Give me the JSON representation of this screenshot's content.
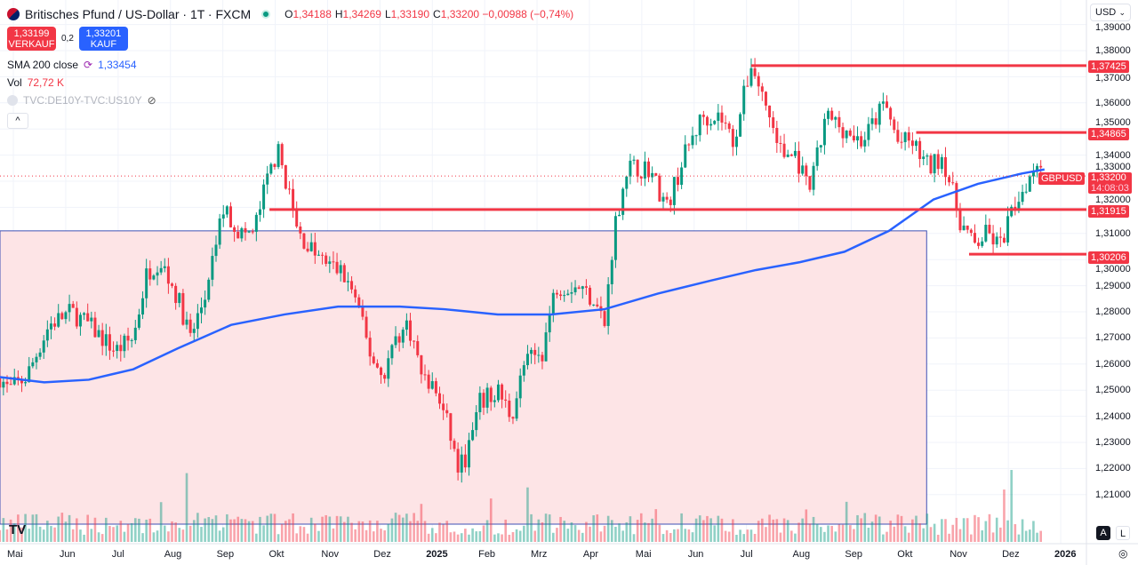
{
  "header": {
    "title": "Britisches Pfund / US-Dollar · 1T · FXCM",
    "o_label": "O",
    "o": "1,34188",
    "h_label": "H",
    "h": "1,34269",
    "l_label": "L",
    "l": "1,33190",
    "c_label": "C",
    "c": "1,33200",
    "change": "−0,00988 (−0,74%)"
  },
  "trade": {
    "sell_price": "1,33199",
    "sell_label": "VERKAUF",
    "spread": "0,2",
    "buy_price": "1,33201",
    "buy_label": "KAUF"
  },
  "indicators": {
    "sma_label": "SMA 200 close",
    "sma_value": "1,33454",
    "vol_label": "Vol",
    "vol_value": "72,72 K",
    "compare_label": "TVC:DE10Y-TVC:US10Y"
  },
  "currency": "USD",
  "price_axis": [
    "1,39000",
    "1,38000",
    "1,37000",
    "1,36000",
    "1,35000",
    "1,34000",
    "1,33000",
    "1,32000",
    "1,31000",
    "1,30000",
    "1,29000",
    "1,28000",
    "1,27000",
    "1,26000",
    "1,25000",
    "1,24000",
    "1,23000",
    "1,22000",
    "1,21000"
  ],
  "price_labels": {
    "l1": "1,37425",
    "l2": "1,34865",
    "l3": "1,31915",
    "l4": "1,30206",
    "symbol": "GBPUSD",
    "current": "1,33200",
    "countdown": "14:08:03"
  },
  "time_axis": [
    "Mai",
    "Jun",
    "Jul",
    "Aug",
    "Sep",
    "Okt",
    "Nov",
    "Dez",
    "2025",
    "Feb",
    "Mrz",
    "Apr",
    "Mai",
    "Jun",
    "Jul",
    "Aug",
    "Sep",
    "Okt",
    "Nov",
    "Dez",
    "2026"
  ],
  "scale_buttons": {
    "auto": "A",
    "log": "L"
  },
  "colors": {
    "up": "#089981",
    "down": "#f23645",
    "sma": "#2962ff",
    "zone": "#fde4e6"
  },
  "chart_data": {
    "type": "candlestick",
    "note": "t = months since May 2024",
    "close_keypoints": [
      [
        -0.31,
        1.255
      ],
      [
        -0.14,
        1.25
      ],
      [
        0.2,
        1.255
      ],
      [
        0.63,
        1.275
      ],
      [
        1.05,
        1.28
      ],
      [
        1.39,
        1.275
      ],
      [
        1.9,
        1.265
      ],
      [
        2.24,
        1.27
      ],
      [
        2.5,
        1.295
      ],
      [
        2.75,
        1.3
      ],
      [
        3.09,
        1.285
      ],
      [
        3.34,
        1.27
      ],
      [
        3.68,
        1.29
      ],
      [
        3.94,
        1.32
      ],
      [
        4.28,
        1.31
      ],
      [
        4.53,
        1.31
      ],
      [
        4.79,
        1.33
      ],
      [
        4.99,
        1.342
      ],
      [
        5.16,
        1.33
      ],
      [
        5.38,
        1.31
      ],
      [
        5.81,
        1.3
      ],
      [
        6.23,
        1.295
      ],
      [
        6.49,
        1.285
      ],
      [
        6.74,
        1.265
      ],
      [
        7.0,
        1.255
      ],
      [
        7.25,
        1.27
      ],
      [
        7.5,
        1.275
      ],
      [
        7.76,
        1.255
      ],
      [
        8.01,
        1.25
      ],
      [
        8.27,
        1.235
      ],
      [
        8.44,
        1.22
      ],
      [
        8.61,
        1.225
      ],
      [
        8.86,
        1.245
      ],
      [
        9.2,
        1.25
      ],
      [
        9.46,
        1.24
      ],
      [
        9.71,
        1.26
      ],
      [
        10.05,
        1.265
      ],
      [
        10.31,
        1.29
      ],
      [
        10.73,
        1.29
      ],
      [
        11.04,
        1.285
      ],
      [
        11.24,
        1.275
      ],
      [
        11.41,
        1.31
      ],
      [
        11.66,
        1.335
      ],
      [
        12.09,
        1.335
      ],
      [
        12.43,
        1.32
      ],
      [
        12.77,
        1.34
      ],
      [
        13.11,
        1.355
      ],
      [
        13.45,
        1.355
      ],
      [
        13.7,
        1.345
      ],
      [
        14.04,
        1.375
      ],
      [
        14.3,
        1.36
      ],
      [
        14.63,
        1.34
      ],
      [
        14.89,
        1.34
      ],
      [
        15.14,
        1.325
      ],
      [
        15.48,
        1.355
      ],
      [
        15.82,
        1.35
      ],
      [
        16.16,
        1.345
      ],
      [
        16.59,
        1.36
      ],
      [
        16.84,
        1.345
      ],
      [
        17.1,
        1.345
      ],
      [
        17.44,
        1.335
      ],
      [
        17.69,
        1.34
      ],
      [
        18.03,
        1.315
      ],
      [
        18.29,
        1.305
      ],
      [
        18.54,
        1.31
      ],
      [
        18.79,
        1.305
      ],
      [
        19.05,
        1.32
      ],
      [
        19.3,
        1.33
      ],
      [
        19.56,
        1.34
      ],
      [
        19.64,
        1.332
      ]
    ],
    "sma200": [
      [
        -0.31,
        1.255
      ],
      [
        0.54,
        1.253
      ],
      [
        1.39,
        1.254
      ],
      [
        2.24,
        1.258
      ],
      [
        3.09,
        1.266
      ],
      [
        4.11,
        1.275
      ],
      [
        5.13,
        1.279
      ],
      [
        6.15,
        1.282
      ],
      [
        7.33,
        1.282
      ],
      [
        8.18,
        1.281
      ],
      [
        9.2,
        1.279
      ],
      [
        10.22,
        1.279
      ],
      [
        11.24,
        1.281
      ],
      [
        12.26,
        1.287
      ],
      [
        13.28,
        1.292
      ],
      [
        14.13,
        1.296
      ],
      [
        14.97,
        1.299
      ],
      [
        15.82,
        1.303
      ],
      [
        16.67,
        1.311
      ],
      [
        17.52,
        1.323
      ],
      [
        18.37,
        1.329
      ],
      [
        19.22,
        1.333
      ],
      [
        19.64,
        1.3345
      ]
    ],
    "horizontal_levels": [
      {
        "price": 1.37425,
        "from_t": 14.04
      },
      {
        "price": 1.34865,
        "from_t": 17.19
      },
      {
        "price": 1.31915,
        "from_t": 4.84
      },
      {
        "price": 1.30206,
        "from_t": 18.2
      }
    ],
    "zone": {
      "price_top": 1.311,
      "t_end": 17.39
    },
    "ylim": [
      1.2,
      1.39
    ]
  }
}
